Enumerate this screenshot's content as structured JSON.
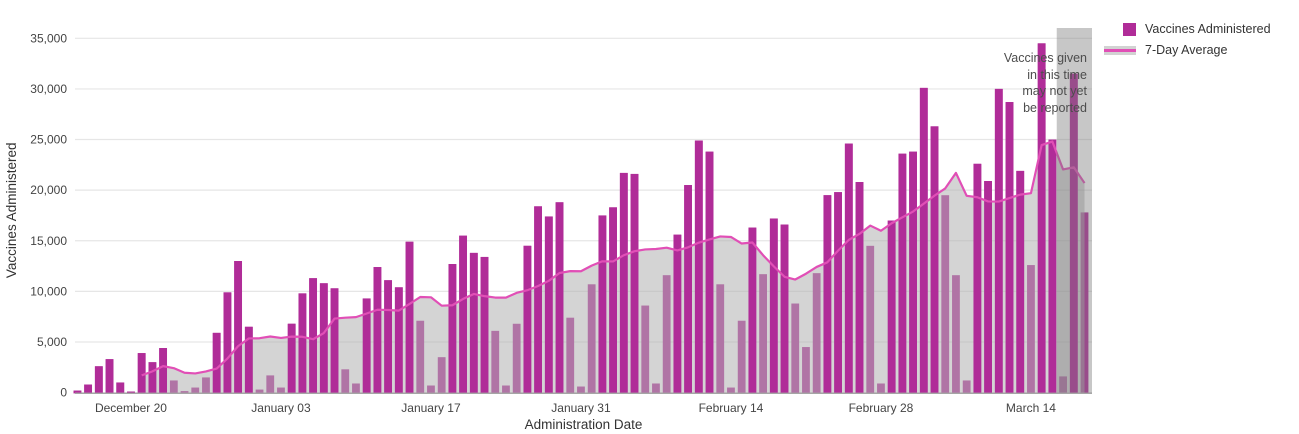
{
  "chart_data": {
    "type": "bar",
    "title": "",
    "xlabel": "Administration Date",
    "ylabel": "Vaccines Administered",
    "ylim": [
      0,
      35000
    ],
    "grid": "horizontal",
    "legend_position": "top-right-outside",
    "y_ticks": [
      0,
      5000,
      10000,
      15000,
      20000,
      25000,
      30000,
      35000
    ],
    "y_tick_labels": [
      "0",
      "5,000",
      "10,000",
      "15,000",
      "20,000",
      "25,000",
      "30,000",
      "35,000"
    ],
    "x_tick_labels": [
      "December 20",
      "January 03",
      "January 17",
      "January 31",
      "February 14",
      "February 28",
      "March 14"
    ],
    "x_tick_day_index": [
      5,
      19,
      33,
      47,
      61,
      75,
      89
    ],
    "bar_series_name": "Vaccines Administered",
    "line_series_name": "7-Day Average",
    "line_derivation": "trailing 7-day mean of daily values, starting at day index 6",
    "categories": [
      "Dec 15",
      "Dec 16",
      "Dec 17",
      "Dec 18",
      "Dec 19",
      "Dec 20",
      "Dec 21",
      "Dec 22",
      "Dec 23",
      "Dec 24",
      "Dec 25",
      "Dec 26",
      "Dec 27",
      "Dec 28",
      "Dec 29",
      "Dec 30",
      "Dec 31",
      "Jan 01",
      "Jan 02",
      "Jan 03",
      "Jan 04",
      "Jan 05",
      "Jan 06",
      "Jan 07",
      "Jan 08",
      "Jan 09",
      "Jan 10",
      "Jan 11",
      "Jan 12",
      "Jan 13",
      "Jan 14",
      "Jan 15",
      "Jan 16",
      "Jan 17",
      "Jan 18",
      "Jan 19",
      "Jan 20",
      "Jan 21",
      "Jan 22",
      "Jan 23",
      "Jan 24",
      "Jan 25",
      "Jan 26",
      "Jan 27",
      "Jan 28",
      "Jan 29",
      "Jan 30",
      "Jan 31",
      "Feb 01",
      "Feb 02",
      "Feb 03",
      "Feb 04",
      "Feb 05",
      "Feb 06",
      "Feb 07",
      "Feb 08",
      "Feb 09",
      "Feb 10",
      "Feb 11",
      "Feb 12",
      "Feb 13",
      "Feb 14",
      "Feb 15",
      "Feb 16",
      "Feb 17",
      "Feb 18",
      "Feb 19",
      "Feb 20",
      "Feb 21",
      "Feb 22",
      "Feb 23",
      "Feb 24",
      "Feb 25",
      "Feb 26",
      "Feb 27",
      "Feb 28",
      "Mar 01",
      "Mar 02",
      "Mar 03",
      "Mar 04",
      "Mar 05",
      "Mar 06",
      "Mar 07",
      "Mar 08",
      "Mar 09",
      "Mar 10",
      "Mar 11",
      "Mar 12",
      "Mar 13",
      "Mar 14",
      "Mar 15",
      "Mar 16",
      "Mar 17",
      "Mar 18",
      "Mar 19"
    ],
    "values": [
      200,
      800,
      2600,
      3300,
      1000,
      100,
      3900,
      3000,
      4400,
      1200,
      150,
      500,
      1500,
      5900,
      9900,
      13000,
      6500,
      300,
      1700,
      500,
      6800,
      9800,
      11300,
      10800,
      10300,
      2300,
      900,
      9300,
      12400,
      11100,
      10400,
      14900,
      7100,
      700,
      3500,
      12700,
      15500,
      13800,
      13400,
      6100,
      700,
      6800,
      14500,
      18400,
      17400,
      18800,
      7400,
      600,
      10700,
      17500,
      18300,
      21700,
      21600,
      8600,
      900,
      11600,
      15600,
      20500,
      24900,
      23800,
      10700,
      500,
      7100,
      16300,
      11700,
      17200,
      16600,
      8800,
      4500,
      11800,
      19500,
      19800,
      24600,
      20800,
      14500,
      900,
      17000,
      23600,
      23800,
      30100,
      26300,
      19500,
      11600,
      1200,
      22600,
      20900,
      30000,
      28700,
      21900,
      12600,
      34500,
      25000,
      1600,
      31500,
      17800
    ],
    "unreported_band_start_index": 92,
    "unreported_band_end_index": 94
  },
  "legend": {
    "items": [
      {
        "label": "Vaccines Administered",
        "swatch": "bar-swatch-icon"
      },
      {
        "label": "7-Day Average",
        "swatch": "line-swatch-icon"
      }
    ]
  },
  "annotation": {
    "lines": [
      "Vaccines given",
      "in this time",
      "may not yet",
      "be reported"
    ]
  },
  "colors": {
    "bar": "#b02c98",
    "line": "#e14fb6",
    "area_fill": "#b1b1b1",
    "area_opacity": 0.55,
    "unreported_band": "#7a7a7a",
    "unreported_band_opacity": 0.42,
    "gridline": "#e6e6e6",
    "axis_line": "#a6a6a6",
    "tick_text": "#444444",
    "axis_title_text": "#333333",
    "annotation_text": "#4d4d4d"
  }
}
